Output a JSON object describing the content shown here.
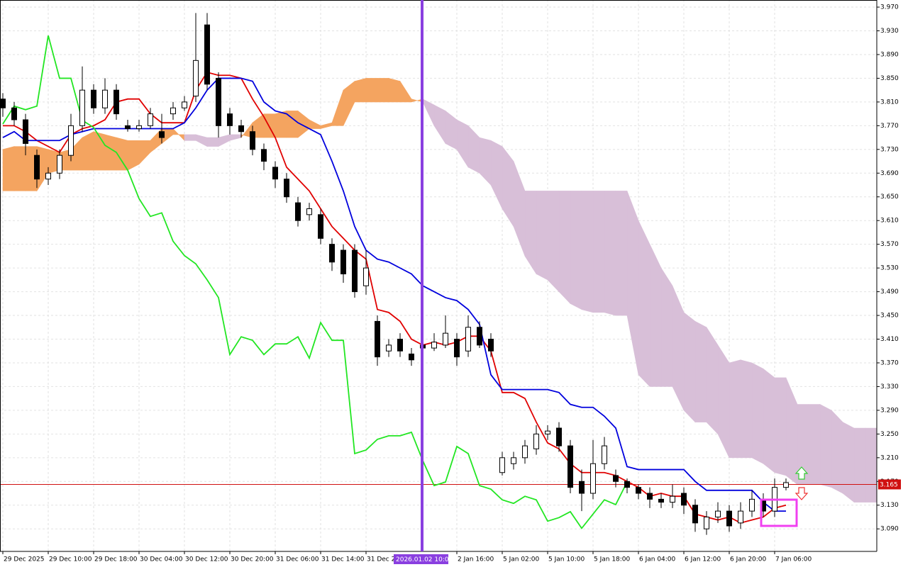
{
  "chart_data": {
    "type": "candlestick",
    "categories": [
      "29 Dec 2025",
      null,
      null,
      null,
      "29 Dec 10:00",
      null,
      null,
      null,
      "29 Dec 18:00",
      null,
      null,
      null,
      "30 Dec 04:00",
      null,
      null,
      null,
      "30 Dec 12:00",
      null,
      null,
      null,
      "30 Dec 20:00",
      null,
      null,
      null,
      "31 Dec 06:00",
      null,
      null,
      null,
      "31 Dec 14:00",
      null,
      null,
      null,
      "31 Dec 22:00",
      null,
      null,
      null,
      null,
      null,
      null,
      null,
      "2 Jan 16:00",
      null,
      null,
      null,
      "5 Jan 02:00",
      null,
      null,
      null,
      "5 Jan 10:00",
      null,
      null,
      null,
      "5 Jan 18:00",
      null,
      null,
      null,
      "6 Jan 04:00",
      null,
      null,
      null,
      "6 Jan 12:00",
      null,
      null,
      null,
      "6 Jan 20:00",
      null,
      null,
      null,
      "7 Jan 06:00",
      null,
      null,
      null,
      null,
      null,
      null,
      null,
      null,
      null
    ],
    "open": [
      3.815,
      3.8,
      3.78,
      3.72,
      3.68,
      3.69,
      3.72,
      3.77,
      3.83,
      3.8,
      3.83,
      3.77,
      3.765,
      3.77,
      3.76,
      3.79,
      3.8,
      3.82,
      3.94,
      3.85,
      3.79,
      3.77,
      3.76,
      3.73,
      3.7,
      3.68,
      3.64,
      3.62,
      3.62,
      3.57,
      3.56,
      3.56,
      3.5,
      3.44,
      3.39,
      3.41,
      3.385,
      3.4,
      3.395,
      3.4,
      3.41,
      3.39,
      3.43,
      3.41,
      3.185,
      3.2,
      3.21,
      3.225,
      3.25,
      3.26,
      3.23,
      3.17,
      3.15,
      3.2,
      3.18,
      3.17,
      3.16,
      3.15,
      3.14,
      3.135,
      3.15,
      3.13,
      3.09,
      3.11,
      3.12,
      3.1,
      3.12,
      3.14,
      3.12,
      3.16,
      null,
      null,
      null,
      null,
      null,
      null,
      null,
      null
    ],
    "high": [
      3.825,
      3.81,
      3.79,
      3.73,
      3.7,
      3.73,
      3.79,
      3.87,
      3.84,
      3.85,
      3.84,
      3.78,
      3.78,
      3.8,
      3.79,
      3.81,
      3.82,
      3.96,
      3.96,
      3.86,
      3.8,
      3.78,
      3.77,
      3.74,
      3.71,
      3.69,
      3.65,
      3.64,
      3.63,
      3.58,
      3.57,
      3.57,
      3.56,
      3.45,
      3.41,
      3.42,
      3.395,
      3.41,
      3.42,
      3.45,
      3.42,
      3.45,
      3.44,
      3.42,
      3.22,
      3.22,
      3.24,
      3.265,
      3.265,
      3.27,
      3.24,
      3.19,
      3.24,
      3.245,
      3.19,
      3.175,
      3.165,
      3.16,
      3.15,
      3.165,
      3.16,
      3.14,
      3.12,
      3.135,
      3.13,
      3.135,
      3.155,
      3.15,
      3.175,
      3.175,
      null,
      null,
      null,
      null,
      null,
      null,
      null,
      null
    ],
    "low": [
      3.785,
      3.77,
      3.72,
      3.665,
      3.67,
      3.68,
      3.71,
      3.76,
      3.79,
      3.79,
      3.78,
      3.76,
      3.76,
      3.765,
      3.74,
      3.78,
      3.795,
      3.81,
      3.83,
      3.75,
      3.755,
      3.75,
      3.72,
      3.695,
      3.665,
      3.64,
      3.6,
      3.61,
      3.57,
      3.525,
      3.505,
      3.48,
      3.485,
      3.365,
      3.38,
      3.38,
      3.365,
      3.385,
      3.39,
      3.395,
      3.365,
      3.38,
      3.395,
      3.38,
      3.18,
      3.19,
      3.2,
      3.215,
      3.24,
      3.22,
      3.15,
      3.12,
      3.14,
      3.19,
      3.16,
      3.15,
      3.14,
      3.125,
      3.125,
      3.125,
      3.115,
      3.085,
      3.08,
      3.1,
      3.085,
      3.09,
      3.11,
      3.11,
      3.11,
      3.155,
      null,
      null,
      null,
      null,
      null,
      null,
      null,
      null
    ],
    "close": [
      3.8,
      3.78,
      3.74,
      3.68,
      3.69,
      3.72,
      3.77,
      3.83,
      3.8,
      3.83,
      3.79,
      3.765,
      3.77,
      3.79,
      3.75,
      3.8,
      3.81,
      3.88,
      3.84,
      3.77,
      3.77,
      3.76,
      3.73,
      3.71,
      3.68,
      3.65,
      3.61,
      3.63,
      3.58,
      3.54,
      3.52,
      3.49,
      3.53,
      3.38,
      3.4,
      3.39,
      3.375,
      3.395,
      3.405,
      3.42,
      3.38,
      3.43,
      3.4,
      3.39,
      3.21,
      3.21,
      3.23,
      3.25,
      3.255,
      3.23,
      3.16,
      3.15,
      3.2,
      3.23,
      3.17,
      3.16,
      3.15,
      3.14,
      3.135,
      3.145,
      3.13,
      3.1,
      3.11,
      3.12,
      3.095,
      3.12,
      3.14,
      3.12,
      3.16,
      3.168,
      null,
      null,
      null,
      null,
      null,
      null,
      null,
      null
    ],
    "candle_colors": [
      "#ffffff",
      "#000000"
    ],
    "lines": [
      {
        "color": "#e00000",
        "values": [
          3.77,
          3.77,
          3.76,
          3.745,
          3.735,
          3.725,
          3.755,
          3.765,
          3.77,
          3.78,
          3.81,
          3.815,
          3.815,
          3.79,
          3.775,
          3.775,
          3.775,
          3.83,
          3.86,
          3.855,
          3.855,
          3.85,
          3.815,
          3.785,
          3.75,
          3.7,
          3.68,
          3.66,
          3.63,
          3.6,
          3.58,
          3.56,
          3.545,
          3.46,
          3.455,
          3.44,
          3.41,
          3.4,
          3.405,
          3.4,
          3.405,
          3.415,
          3.415,
          3.39,
          3.32,
          3.32,
          3.31,
          3.27,
          3.235,
          3.225,
          3.2,
          3.185,
          3.185,
          3.185,
          3.18,
          3.17,
          3.16,
          3.145,
          3.15,
          3.145,
          3.145,
          3.115,
          3.11,
          3.105,
          3.11,
          3.1,
          3.105,
          3.11,
          3.125,
          3.13,
          null,
          null,
          null,
          null,
          null,
          null,
          null,
          null
        ]
      },
      {
        "color": "#0000dd",
        "values": [
          3.75,
          3.76,
          3.745,
          3.745,
          3.745,
          3.745,
          3.755,
          3.76,
          3.765,
          3.765,
          3.765,
          3.765,
          3.765,
          3.765,
          3.765,
          3.765,
          3.775,
          3.8,
          3.83,
          3.85,
          3.85,
          3.85,
          3.845,
          3.81,
          3.795,
          3.79,
          3.775,
          3.765,
          3.755,
          3.71,
          3.66,
          3.6,
          3.56,
          3.545,
          3.54,
          3.53,
          3.52,
          3.5,
          3.49,
          3.48,
          3.475,
          3.46,
          3.435,
          3.35,
          3.325,
          3.325,
          3.325,
          3.325,
          3.325,
          3.32,
          3.3,
          3.295,
          3.295,
          3.28,
          3.26,
          3.195,
          3.19,
          3.19,
          3.19,
          3.19,
          3.19,
          3.17,
          3.155,
          3.155,
          3.155,
          3.155,
          3.155,
          3.135,
          3.12,
          3.12,
          null,
          null,
          null,
          null,
          null,
          null,
          null,
          null
        ]
      },
      {
        "color": "#22e622",
        "values": [
          3.773,
          3.803,
          3.797,
          3.803,
          3.922,
          3.85,
          3.85,
          3.779,
          3.767,
          3.737,
          3.725,
          3.695,
          3.647,
          3.617,
          3.623,
          3.575,
          3.551,
          3.537,
          3.51,
          3.48,
          3.384,
          3.414,
          3.408,
          3.384,
          3.402,
          3.402,
          3.414,
          3.378,
          3.438,
          3.408,
          3.408,
          3.217,
          3.223,
          3.241,
          3.247,
          3.247,
          3.253,
          3.205,
          3.163,
          3.169,
          3.229,
          3.217,
          3.163,
          3.157,
          3.139,
          3.133,
          3.145,
          3.139,
          3.103,
          3.109,
          3.119,
          3.091,
          3.115,
          3.139,
          3.131,
          3.169,
          null,
          null,
          null,
          null,
          null,
          null,
          null,
          null,
          null,
          null,
          null,
          null,
          null,
          null,
          null,
          null,
          null,
          null,
          null,
          null,
          null,
          null
        ]
      }
    ],
    "cloud": {
      "span_a": [
        3.73,
        3.735,
        3.735,
        3.735,
        3.73,
        3.725,
        3.73,
        3.75,
        3.76,
        3.755,
        3.75,
        3.745,
        3.745,
        3.745,
        3.765,
        3.765,
        3.745,
        3.745,
        3.735,
        3.735,
        3.745,
        3.75,
        3.775,
        3.79,
        3.79,
        3.795,
        3.795,
        3.78,
        3.77,
        3.775,
        3.83,
        3.845,
        3.85,
        3.85,
        3.85,
        3.845,
        3.815,
        3.81,
        3.77,
        3.74,
        3.73,
        3.7,
        3.69,
        3.67,
        3.63,
        3.6,
        3.55,
        3.52,
        3.51,
        3.49,
        3.47,
        3.46,
        3.455,
        3.455,
        3.45,
        3.45,
        3.35,
        3.33,
        3.33,
        3.33,
        3.29,
        3.27,
        3.27,
        3.25,
        3.21,
        3.21,
        3.21,
        3.2,
        3.185,
        3.18,
        3.165,
        3.165,
        3.165,
        3.16,
        3.15,
        3.135,
        3.135,
        3.135
      ],
      "span_b": [
        3.66,
        3.66,
        3.66,
        3.66,
        3.69,
        3.695,
        3.695,
        3.695,
        3.695,
        3.695,
        3.695,
        3.695,
        3.705,
        3.725,
        3.74,
        3.755,
        3.755,
        3.755,
        3.75,
        3.75,
        3.755,
        3.755,
        3.75,
        3.75,
        3.75,
        3.75,
        3.75,
        3.765,
        3.765,
        3.77,
        3.77,
        3.81,
        3.81,
        3.81,
        3.81,
        3.81,
        3.81,
        3.815,
        3.805,
        3.795,
        3.78,
        3.77,
        3.75,
        3.745,
        3.735,
        3.71,
        3.66,
        3.66,
        3.66,
        3.66,
        3.66,
        3.66,
        3.66,
        3.66,
        3.66,
        3.66,
        3.61,
        3.57,
        3.53,
        3.5,
        3.455,
        3.44,
        3.43,
        3.4,
        3.37,
        3.375,
        3.37,
        3.36,
        3.345,
        3.345,
        3.3,
        3.3,
        3.3,
        3.29,
        3.27,
        3.26,
        3.26,
        3.26
      ],
      "colors": [
        "#f4a460",
        "#d8bfd8"
      ]
    },
    "ylim": [
      3.052,
      3.982
    ],
    "yticks": [
      {
        "value": 3.97,
        "label": "3.970"
      },
      {
        "value": 3.93,
        "label": "3.930"
      },
      {
        "value": 3.89,
        "label": "3.890"
      },
      {
        "value": 3.85,
        "label": "3.850"
      },
      {
        "value": 3.81,
        "label": "3.810"
      },
      {
        "value": 3.77,
        "label": "3.770"
      },
      {
        "value": 3.73,
        "label": "3.730"
      },
      {
        "value": 3.69,
        "label": "3.690"
      },
      {
        "value": 3.65,
        "label": "3.650"
      },
      {
        "value": 3.61,
        "label": "3.610"
      },
      {
        "value": 3.57,
        "label": "3.570"
      },
      {
        "value": 3.53,
        "label": "3.530"
      },
      {
        "value": 3.49,
        "label": "3.490"
      },
      {
        "value": 3.45,
        "label": "3.450"
      },
      {
        "value": 3.41,
        "label": "3.410"
      },
      {
        "value": 3.37,
        "label": "3.370"
      },
      {
        "value": 3.33,
        "label": "3.330"
      },
      {
        "value": 3.29,
        "label": "3.290"
      },
      {
        "value": 3.25,
        "label": "3.250"
      },
      {
        "value": 3.21,
        "label": "3.210"
      },
      {
        "value": 3.17,
        "label": "3.170"
      },
      {
        "value": 3.13,
        "label": "3.130"
      },
      {
        "value": 3.09,
        "label": "3.090"
      }
    ],
    "grid": true,
    "price_line": 3.165,
    "price_line_color": "#d01010",
    "crosshair": {
      "label": "2026.01.02 10:00",
      "color": "#8a3fe0"
    }
  }
}
